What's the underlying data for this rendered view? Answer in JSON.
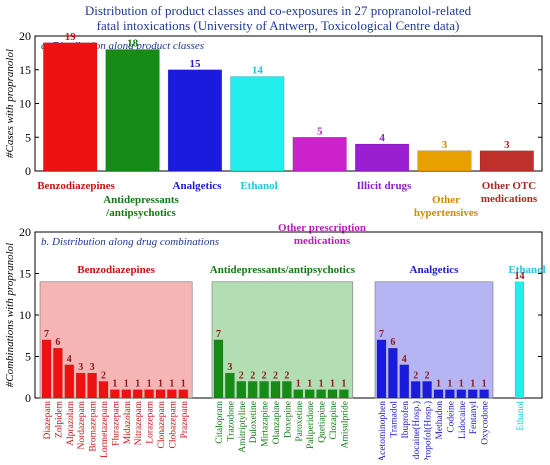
{
  "figure": {
    "title_line1": "Distribution of product classes and co-exposures in 27 propranolol-related",
    "title_line2": "fatal intoxications (University of Antwerp, Toxicological Centre data)",
    "title_color": "#1f3a93"
  },
  "chart_data": [
    {
      "type": "bar",
      "panel_title": "a. Distribution along product classes",
      "ylabel": "#Cases with propranolol",
      "ylim": [
        0,
        20
      ],
      "yticks": [
        0,
        5,
        10,
        15,
        20
      ],
      "grid": false,
      "categories": [
        [
          "Benzodiazepines"
        ],
        [
          "Antidepressants",
          "/antipsychotics"
        ],
        [
          "Analgetics"
        ],
        [
          "Ethanol"
        ],
        [
          "Other prescription",
          "medications"
        ],
        [
          "Illicit drugs"
        ],
        [
          "Other",
          "hypertensives"
        ],
        [
          "Other OTC",
          "medications"
        ]
      ],
      "values": [
        19,
        18,
        15,
        14,
        5,
        4,
        3,
        3
      ],
      "colors": [
        "#ee1111",
        "#168b16",
        "#1b1bdd",
        "#22eeee",
        "#cc22cc",
        "#9a1fd0",
        "#e8a000",
        "#c0302a"
      ],
      "label_colors": [
        "#cc1111",
        "#137a13",
        "#1b1bcc",
        "#1ec8d8",
        "#b51fb5",
        "#8a1fc4",
        "#d28a00",
        "#a82a24"
      ]
    },
    {
      "type": "bar",
      "panel_title": "b. Distribution along drug combinations",
      "ylabel": "#Combinations with propranolol",
      "ylim": [
        0,
        20
      ],
      "yticks": [
        0,
        5,
        10,
        15,
        20
      ],
      "grid": false,
      "groups": [
        {
          "name": "Benzodiazepines",
          "color": "#ee1111",
          "bg": "#f4a8a8",
          "label_color": "#cc1111",
          "categories": [
            "Diazepam",
            "Zolpidem",
            "Alprazolam",
            "Nordazepam",
            "Bromazepam",
            "Lormetazepam",
            "Flurazepam",
            "Midazolam",
            "Nitrazepam",
            "Lorazepam",
            "Clonazepam",
            "Clobazepam",
            "Prazepam"
          ],
          "values": [
            7,
            6,
            4,
            3,
            3,
            2,
            1,
            1,
            1,
            1,
            1,
            1,
            1
          ]
        },
        {
          "name": "Antidepressants/antipsychotics",
          "color": "#168b16",
          "bg": "#a6d8a6",
          "label_color": "#137a13",
          "categories": [
            "Citalopram",
            "Trazodone",
            "Amitriptyline",
            "Duloxetine",
            "Mirtazapine",
            "Olanzapine",
            "Doxepine",
            "Paroxetine",
            "Paliperidone",
            "Quetiapine",
            "Clozapine",
            "Amisulpride"
          ],
          "values": [
            7,
            3,
            2,
            2,
            2,
            2,
            2,
            1,
            1,
            1,
            1,
            1
          ]
        },
        {
          "name": "Analgetics",
          "color": "#1b1bdd",
          "bg": "#a8a8f2",
          "label_color": "#1b1bcc",
          "categories": [
            "Acetominophen",
            "Tramadol",
            "Ibuprofen",
            "Lidocaine(Hosp.)",
            "Propofol(Hosp.)",
            "Methadon",
            "Codeine",
            "Lidocaine",
            "Fentanyl",
            "Oxycodone"
          ],
          "values": [
            7,
            6,
            4,
            2,
            2,
            1,
            1,
            1,
            1,
            1
          ]
        },
        {
          "name": "Ethanol",
          "color": "#22eeee",
          "bg": "#ffffff",
          "label_color": "#1ec8d8",
          "categories": [
            "Ethanol"
          ],
          "values": [
            14
          ]
        }
      ]
    }
  ]
}
